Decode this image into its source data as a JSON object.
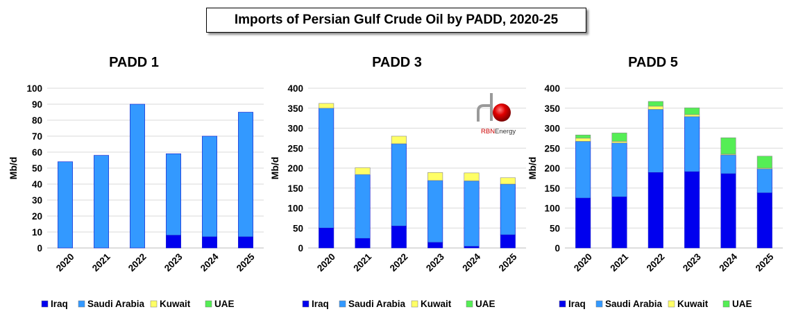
{
  "main_title": "Imports of Persian Gulf Crude Oil by PADD, 2020-25",
  "logo": {
    "text_red": "RBN",
    "text_rest": " Energy"
  },
  "colors": {
    "Iraq": "#0000ee",
    "Saudi Arabia": "#3399ff",
    "Kuwait": "#ffff66",
    "UAE": "#55ee55"
  },
  "legend": [
    "Iraq",
    "Saudi Arabia",
    "Kuwait",
    "UAE"
  ],
  "chart_data": [
    {
      "type": "bar",
      "stacked": true,
      "title": "PADD 1",
      "ylabel": "Mb/d",
      "xlabel": "",
      "ylim": [
        0,
        100
      ],
      "yticks": [
        0,
        10,
        20,
        30,
        40,
        50,
        60,
        70,
        80,
        90,
        100
      ],
      "grid": true,
      "categories": [
        "2020",
        "2021",
        "2022",
        "2023",
        "2024",
        "2025"
      ],
      "series": [
        {
          "name": "Iraq",
          "values": [
            0,
            0,
            0,
            8,
            7,
            7
          ]
        },
        {
          "name": "Saudi Arabia",
          "values": [
            54,
            58,
            90,
            51,
            63,
            78
          ]
        },
        {
          "name": "Kuwait",
          "values": [
            0,
            0,
            0,
            0,
            0,
            0
          ]
        },
        {
          "name": "UAE",
          "values": [
            0,
            0,
            0,
            0,
            0,
            0
          ]
        }
      ]
    },
    {
      "type": "bar",
      "stacked": true,
      "title": "PADD 3",
      "ylabel": "Mb/d",
      "xlabel": "",
      "ylim": [
        0,
        400
      ],
      "yticks": [
        0,
        50,
        100,
        150,
        200,
        250,
        300,
        350,
        400
      ],
      "grid": true,
      "categories": [
        "2020",
        "2021",
        "2022",
        "2023",
        "2024",
        "2025"
      ],
      "series": [
        {
          "name": "Iraq",
          "values": [
            50,
            24,
            55,
            14,
            4,
            33
          ]
        },
        {
          "name": "Saudi Arabia",
          "values": [
            300,
            160,
            206,
            155,
            164,
            127
          ]
        },
        {
          "name": "Kuwait",
          "values": [
            12,
            17,
            19,
            20,
            20,
            16
          ]
        },
        {
          "name": "UAE",
          "values": [
            0,
            0,
            0,
            0,
            0,
            0
          ]
        }
      ]
    },
    {
      "type": "bar",
      "stacked": true,
      "title": "PADD 5",
      "ylabel": "Mb/d",
      "xlabel": "",
      "ylim": [
        0,
        400
      ],
      "yticks": [
        0,
        50,
        100,
        150,
        200,
        250,
        300,
        350,
        400
      ],
      "grid": true,
      "categories": [
        "2020",
        "2021",
        "2022",
        "2023",
        "2024",
        "2025"
      ],
      "series": [
        {
          "name": "Iraq",
          "values": [
            125,
            128,
            189,
            191,
            186,
            138
          ]
        },
        {
          "name": "Saudi Arabia",
          "values": [
            142,
            135,
            158,
            138,
            47,
            60
          ]
        },
        {
          "name": "Kuwait",
          "values": [
            8,
            4,
            8,
            5,
            2,
            2
          ]
        },
        {
          "name": "UAE",
          "values": [
            8,
            21,
            12,
            17,
            41,
            30
          ]
        }
      ]
    }
  ]
}
